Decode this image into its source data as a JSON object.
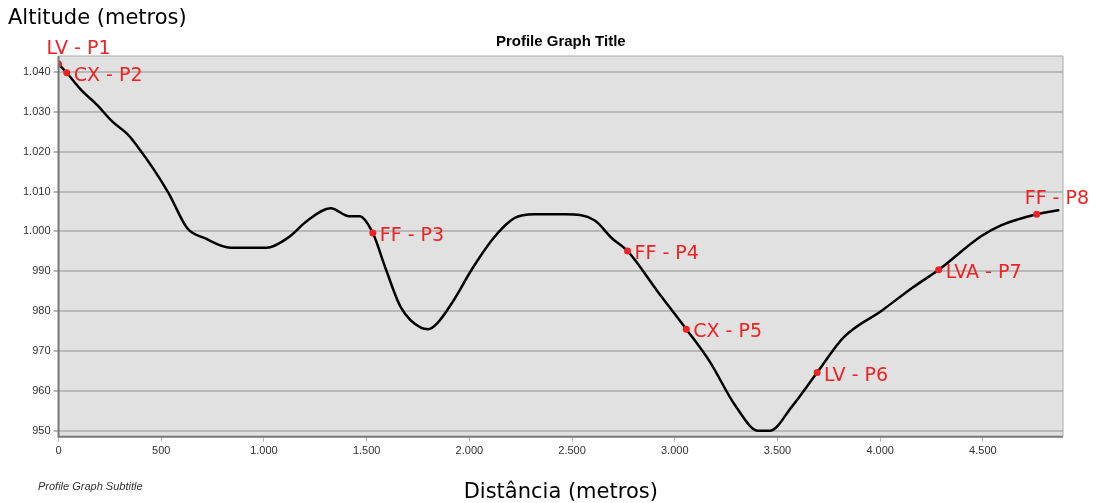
{
  "chart_data": {
    "type": "line",
    "title": "Profile Graph Title",
    "subtitle": "Profile Graph Subtitle",
    "xlabel": "Distância (metros)",
    "ylabel": "Altitude (metros)",
    "xlim": [
      0,
      4890
    ],
    "ylim": [
      948.5,
      1044
    ],
    "xticks": [
      0,
      500,
      {
        "value": 1000,
        "label": "1.000"
      },
      {
        "value": 1500,
        "label": "1.500"
      },
      {
        "value": 2000,
        "label": "2.000"
      },
      {
        "value": 2500,
        "label": "2.500"
      },
      {
        "value": 3000,
        "label": "3.000"
      },
      {
        "value": 3500,
        "label": "3.500"
      },
      {
        "value": 4000,
        "label": "4.000"
      },
      {
        "value": 4500,
        "label": "4.500"
      }
    ],
    "yticks": [
      950,
      960,
      970,
      980,
      990,
      {
        "value": 1000,
        "label": "1.000"
      },
      {
        "value": 1010,
        "label": "1.010"
      },
      {
        "value": 1020,
        "label": "1.020"
      },
      {
        "value": 1030,
        "label": "1.030"
      },
      {
        "value": 1040,
        "label": "1.040"
      }
    ],
    "grid": "y",
    "legend": false,
    "series": [
      {
        "color": "#000000",
        "marker": "none",
        "x": [
          0,
          40,
          110,
          186,
          261,
          336,
          386,
          462,
          537,
          627,
          712,
          838,
          1013,
          1114,
          1214,
          1325,
          1415,
          1465,
          1530,
          1591,
          1666,
          1766,
          1801,
          1841,
          1917,
          2017,
          2117,
          2218,
          2318,
          2469,
          2609,
          2694,
          2770,
          2920,
          3056,
          3171,
          3296,
          3407,
          3462,
          3572,
          3693,
          3823,
          4009,
          4160,
          4285,
          4491,
          4591,
          4762,
          4867
        ],
        "values": [
          1042,
          1039.8,
          1035.5,
          1031.8,
          1027.6,
          1024.4,
          1021.2,
          1015.7,
          1009.5,
          1000.8,
          998.3,
          995.9,
          995.9,
          998.3,
          1002.8,
          1005.8,
          1003.8,
          1003.8,
          999.6,
          990.9,
          981,
          975.8,
          975.5,
          976.8,
          982.2,
          990.9,
          998.3,
          1003.3,
          1004.3,
          1004.3,
          1002.8,
          998.3,
          995.1,
          984.7,
          975.5,
          967.3,
          956.2,
          950,
          950,
          956.2,
          964.6,
          973.5,
          980.2,
          986,
          990.4,
          998.8,
          1001.6,
          1004.3,
          1005.3
        ]
      },
      {
        "type": "scatter",
        "color": "#ee2222",
        "marker": "circle",
        "x": [
          0,
          40,
          1530,
          2770,
          3056,
          3693,
          4285,
          4762
        ],
        "values": [
          1042,
          1039.8,
          999.6,
          995.1,
          975.5,
          964.6,
          990.4,
          1004.3
        ]
      }
    ],
    "annotations": [
      {
        "text": "LV - P1",
        "x": 0,
        "y": 1042
      },
      {
        "text": "CX - P2",
        "x": 40,
        "y": 1039.8
      },
      {
        "text": "FF - P3",
        "x": 1530,
        "y": 999.6
      },
      {
        "text": "FF - P4",
        "x": 2770,
        "y": 995.1
      },
      {
        "text": "CX - P5",
        "x": 3056,
        "y": 975.5
      },
      {
        "text": "LV - P6",
        "x": 3693,
        "y": 964.6
      },
      {
        "text": "LVA - P7",
        "x": 4285,
        "y": 990.4
      },
      {
        "text": "FF - P8",
        "x": 4762,
        "y": 1004.3
      }
    ]
  }
}
